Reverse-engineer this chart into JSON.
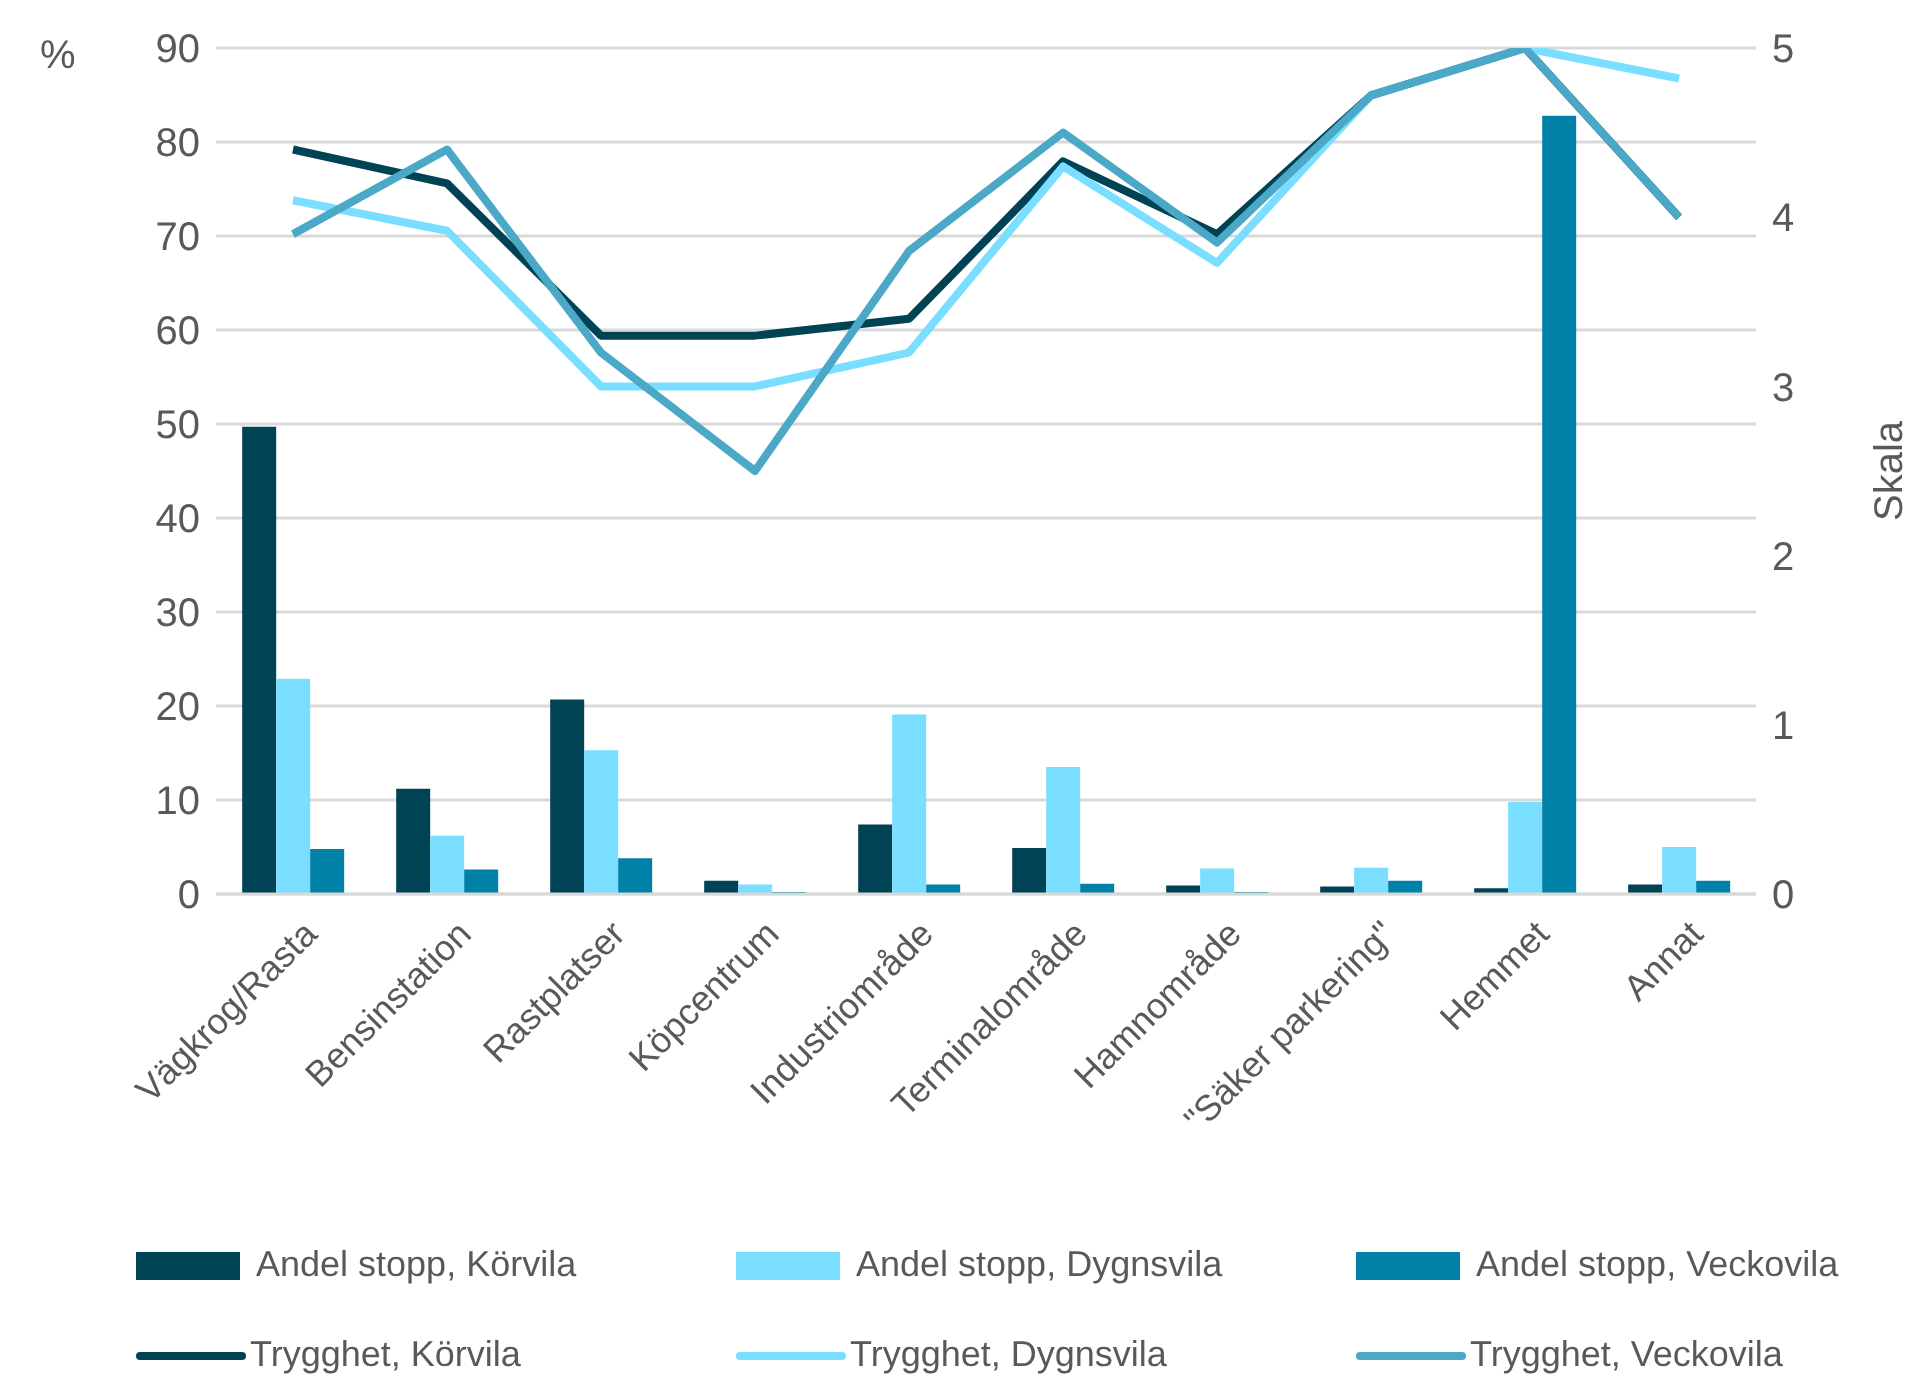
{
  "chart_data": {
    "type": "bar",
    "ylabel": "%",
    "y2label": "Skala",
    "categories": [
      "Vägkrog/Rasta",
      "Bensinstation",
      "Rastplatser",
      "Köpcentrum",
      "Industriområde",
      "Terminalområde",
      "Hamnområde",
      "\"Säker parkering\"",
      "Hemmet",
      "Annat"
    ],
    "series": [
      {
        "name": "Andel stopp, Körvila",
        "color": "#004355",
        "values": [
          49.7,
          11.2,
          20.7,
          1.4,
          7.4,
          4.9,
          0.9,
          0.8,
          0.6,
          1.0
        ]
      },
      {
        "name": "Andel stopp, Dygnsvila",
        "color": "#79deff",
        "values": [
          22.9,
          6.2,
          15.3,
          1.0,
          19.1,
          13.5,
          2.7,
          2.8,
          9.8,
          5.0
        ]
      },
      {
        "name": "Andel stopp, Veckovila",
        "color": "#0081a7",
        "values": [
          4.8,
          2.6,
          3.8,
          0.2,
          1.0,
          1.1,
          0.2,
          1.4,
          82.8,
          1.4
        ]
      },
      {
        "name": "Trygghet, Körvila",
        "type": "line",
        "axis": "y2",
        "color": "#004355",
        "values": [
          4.4,
          4.2,
          3.3,
          3.3,
          3.4,
          4.33,
          3.9,
          4.72,
          5.0,
          4.0
        ]
      },
      {
        "name": "Trygghet, Dygnsvila",
        "type": "line",
        "axis": "y2",
        "color": "#79deff",
        "values": [
          4.1,
          3.92,
          3.0,
          3.0,
          3.2,
          4.3,
          3.73,
          4.72,
          5.0,
          4.82
        ]
      },
      {
        "name": "Trygghet, Veckovila",
        "type": "line",
        "axis": "y2",
        "color": "#4ba8c6",
        "values": [
          3.9,
          4.4,
          3.2,
          2.5,
          3.8,
          4.5,
          3.85,
          4.72,
          5.0,
          4.0
        ]
      }
    ],
    "ylim": [
      0,
      90
    ],
    "yticks": [
      0,
      10,
      20,
      30,
      40,
      50,
      60,
      70,
      80,
      90
    ],
    "y2lim": [
      0,
      5
    ],
    "y2ticks": [
      0,
      1,
      2,
      3,
      4,
      5
    ],
    "grid": "y",
    "legend": "bottom",
    "marker": "none",
    "line_style": "solid"
  }
}
